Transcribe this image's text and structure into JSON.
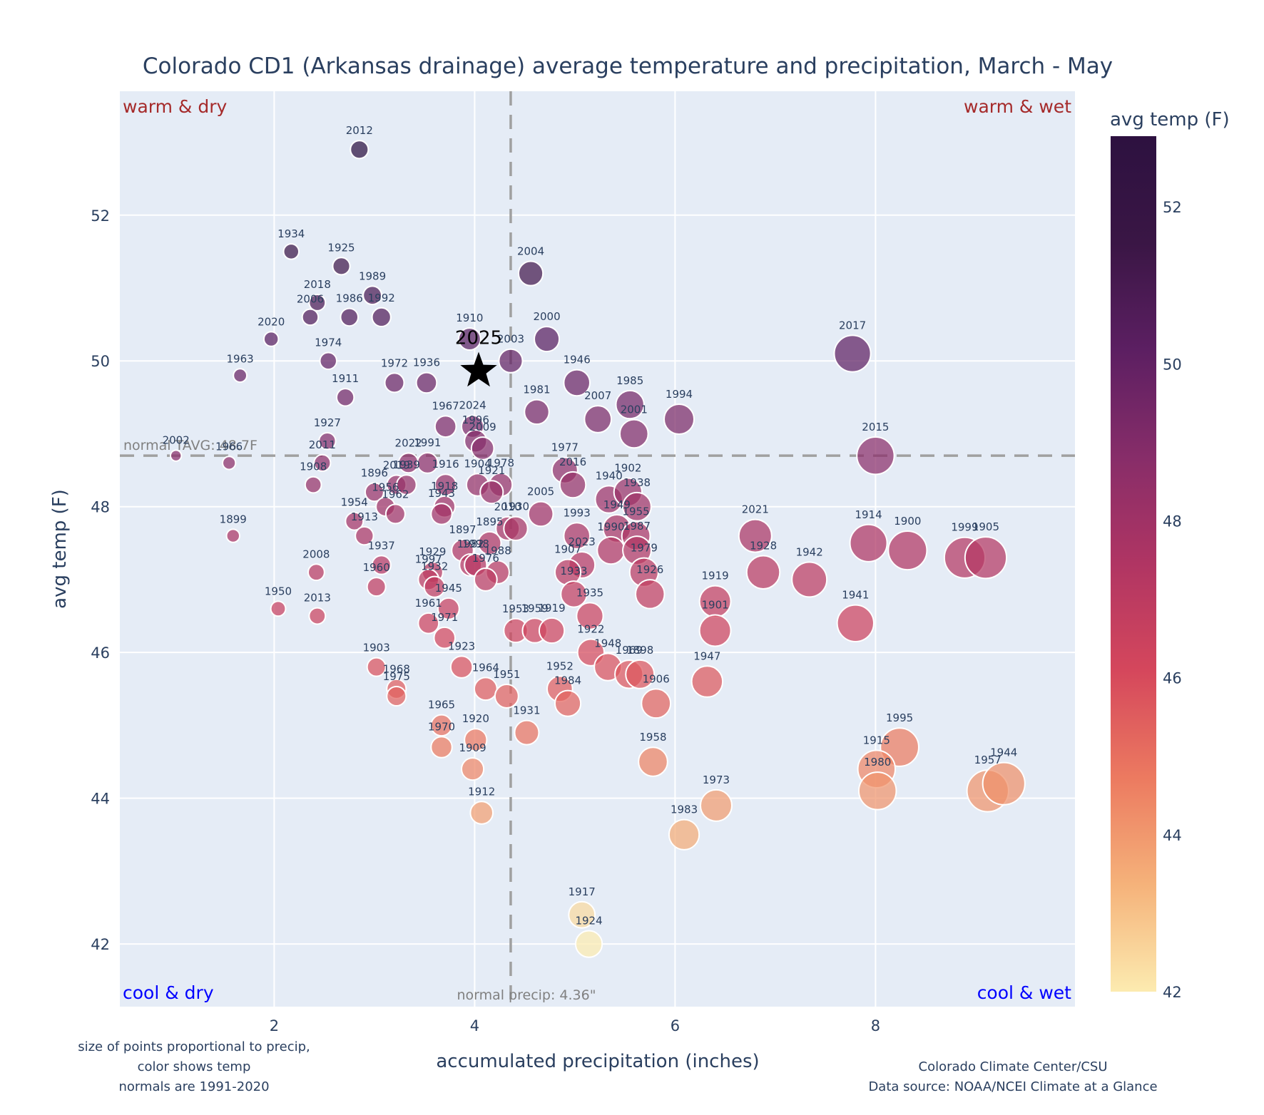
{
  "chart_data": {
    "type": "scatter",
    "title": "Colorado CD1 (Arkansas drainage) average temperature and precipitation, March - May",
    "xlabel": "accumulated precipitation (inches)",
    "ylabel": "avg temp (F)",
    "xlim": [
      0.46,
      9.99
    ],
    "ylim": [
      41.14,
      53.7
    ],
    "xticks": [
      2,
      4,
      6,
      8
    ],
    "yticks": [
      42,
      44,
      46,
      48,
      50,
      52
    ],
    "grid": true,
    "colorbar": {
      "title": "avg temp (F)",
      "range": [
        42,
        52.9
      ],
      "ticks": [
        42,
        44,
        46,
        48,
        50,
        52
      ],
      "colorscale": [
        "#fcebb0",
        "#f5b27a",
        "#ec7a60",
        "#d5475c",
        "#b03563",
        "#872d69",
        "#5c1f62",
        "#3a1645",
        "#2d1140"
      ]
    },
    "normals": {
      "temp": 48.7,
      "precip": 4.36,
      "temp_label": "normal TAVG: 48.7F",
      "precip_label": "normal precip: 4.36\""
    },
    "quadrant_labels": {
      "top_left": "warm & dry",
      "top_right": "warm & wet",
      "bottom_left": "cool & dry",
      "bottom_right": "cool & wet"
    },
    "highlight": {
      "year": "2025",
      "precip": 4.04,
      "temp": 49.9
    },
    "points": [
      {
        "year": "2012",
        "precip": 2.85,
        "temp": 52.9
      },
      {
        "year": "1934",
        "precip": 2.17,
        "temp": 51.5
      },
      {
        "year": "1925",
        "precip": 2.67,
        "temp": 51.3
      },
      {
        "year": "1989",
        "precip": 2.98,
        "temp": 50.9
      },
      {
        "year": "2018",
        "precip": 2.43,
        "temp": 50.8
      },
      {
        "year": "2006",
        "precip": 2.36,
        "temp": 50.6
      },
      {
        "year": "1986",
        "precip": 2.75,
        "temp": 50.6
      },
      {
        "year": "1992",
        "precip": 3.07,
        "temp": 50.6
      },
      {
        "year": "2020",
        "precip": 1.97,
        "temp": 50.3
      },
      {
        "year": "1974",
        "precip": 2.54,
        "temp": 50.0
      },
      {
        "year": "1963",
        "precip": 1.66,
        "temp": 49.8
      },
      {
        "year": "1911",
        "precip": 2.71,
        "temp": 49.5
      },
      {
        "year": "1972",
        "precip": 3.2,
        "temp": 49.7
      },
      {
        "year": "1936",
        "precip": 3.52,
        "temp": 49.7
      },
      {
        "year": "1927",
        "precip": 2.53,
        "temp": 48.9
      },
      {
        "year": "2011",
        "precip": 2.48,
        "temp": 48.6
      },
      {
        "year": "2002",
        "precip": 1.02,
        "temp": 48.7
      },
      {
        "year": "1966",
        "precip": 1.55,
        "temp": 48.6
      },
      {
        "year": "1908",
        "precip": 2.39,
        "temp": 48.3
      },
      {
        "year": "1899",
        "precip": 1.59,
        "temp": 47.6
      },
      {
        "year": "1910",
        "precip": 3.95,
        "temp": 50.3
      },
      {
        "year": "2003",
        "precip": 4.36,
        "temp": 50.0
      },
      {
        "year": "2004",
        "precip": 4.56,
        "temp": 51.2
      },
      {
        "year": "2000",
        "precip": 4.72,
        "temp": 50.3
      },
      {
        "year": "1946",
        "precip": 5.02,
        "temp": 49.7
      },
      {
        "year": "1981",
        "precip": 4.62,
        "temp": 49.3
      },
      {
        "year": "2007",
        "precip": 5.23,
        "temp": 49.2
      },
      {
        "year": "1985",
        "precip": 5.55,
        "temp": 49.4
      },
      {
        "year": "2001",
        "precip": 5.59,
        "temp": 49.0
      },
      {
        "year": "1994",
        "precip": 6.04,
        "temp": 49.2
      },
      {
        "year": "2017",
        "precip": 7.77,
        "temp": 50.1
      },
      {
        "year": "2015",
        "precip": 8.0,
        "temp": 48.7
      },
      {
        "year": "1967",
        "precip": 3.71,
        "temp": 49.1
      },
      {
        "year": "2024",
        "precip": 3.98,
        "temp": 49.1
      },
      {
        "year": "1996",
        "precip": 4.01,
        "temp": 48.9
      },
      {
        "year": "2009",
        "precip": 4.08,
        "temp": 48.8
      },
      {
        "year": "2022",
        "precip": 3.34,
        "temp": 48.6
      },
      {
        "year": "1991",
        "precip": 3.53,
        "temp": 48.6
      },
      {
        "year": "2019",
        "precip": 3.22,
        "temp": 48.3
      },
      {
        "year": "1939",
        "precip": 3.32,
        "temp": 48.3
      },
      {
        "year": "1916",
        "precip": 3.71,
        "temp": 48.3
      },
      {
        "year": "1904",
        "precip": 4.03,
        "temp": 48.3
      },
      {
        "year": "1978",
        "precip": 4.26,
        "temp": 48.3
      },
      {
        "year": "1921",
        "precip": 4.17,
        "temp": 48.2
      },
      {
        "year": "1896",
        "precip": 3.0,
        "temp": 48.2
      },
      {
        "year": "1956",
        "precip": 3.11,
        "temp": 48.0
      },
      {
        "year": "1918",
        "precip": 3.7,
        "temp": 48.0
      },
      {
        "year": "1954",
        "precip": 2.8,
        "temp": 47.8
      },
      {
        "year": "1913",
        "precip": 2.9,
        "temp": 47.6
      },
      {
        "year": "1962",
        "precip": 3.21,
        "temp": 47.9
      },
      {
        "year": "1943",
        "precip": 3.67,
        "temp": 47.9
      },
      {
        "year": "2010",
        "precip": 4.33,
        "temp": 47.7
      },
      {
        "year": "1930",
        "precip": 4.41,
        "temp": 47.7
      },
      {
        "year": "2005",
        "precip": 4.66,
        "temp": 47.9
      },
      {
        "year": "1977",
        "precip": 4.9,
        "temp": 48.5
      },
      {
        "year": "2016",
        "precip": 4.98,
        "temp": 48.3
      },
      {
        "year": "1940",
        "precip": 5.34,
        "temp": 48.1
      },
      {
        "year": "1902",
        "precip": 5.53,
        "temp": 48.2
      },
      {
        "year": "1938",
        "precip": 5.62,
        "temp": 48.0
      },
      {
        "year": "1993",
        "precip": 5.02,
        "temp": 47.6
      },
      {
        "year": "1949",
        "precip": 5.42,
        "temp": 47.7
      },
      {
        "year": "1990",
        "precip": 5.36,
        "temp": 47.4
      },
      {
        "year": "1955",
        "precip": 5.61,
        "temp": 47.6
      },
      {
        "year": "1987",
        "precip": 5.62,
        "temp": 47.4
      },
      {
        "year": "2023",
        "precip": 5.07,
        "temp": 47.2
      },
      {
        "year": "1907",
        "precip": 4.93,
        "temp": 47.1
      },
      {
        "year": "1979",
        "precip": 5.69,
        "temp": 47.1
      },
      {
        "year": "1933",
        "precip": 4.99,
        "temp": 46.8
      },
      {
        "year": "1935",
        "precip": 5.15,
        "temp": 46.5
      },
      {
        "year": "1926",
        "precip": 5.75,
        "temp": 46.8
      },
      {
        "year": "1937",
        "precip": 3.07,
        "temp": 47.2
      },
      {
        "year": "1897",
        "precip": 3.88,
        "temp": 47.4
      },
      {
        "year": "1895",
        "precip": 4.15,
        "temp": 47.5
      },
      {
        "year": "1982",
        "precip": 3.96,
        "temp": 47.2
      },
      {
        "year": "1998",
        "precip": 4.01,
        "temp": 47.2
      },
      {
        "year": "1988",
        "precip": 4.23,
        "temp": 47.1
      },
      {
        "year": "1976",
        "precip": 4.11,
        "temp": 47.0
      },
      {
        "year": "1929",
        "precip": 3.58,
        "temp": 47.1
      },
      {
        "year": "1997",
        "precip": 3.54,
        "temp": 47.0
      },
      {
        "year": "1932",
        "precip": 3.6,
        "temp": 46.9
      },
      {
        "year": "1960",
        "precip": 3.02,
        "temp": 46.9
      },
      {
        "year": "1945",
        "precip": 3.74,
        "temp": 46.6
      },
      {
        "year": "1961",
        "precip": 3.54,
        "temp": 46.4
      },
      {
        "year": "1971",
        "precip": 3.7,
        "temp": 46.2
      },
      {
        "year": "2008",
        "precip": 2.42,
        "temp": 47.1
      },
      {
        "year": "1950",
        "precip": 2.04,
        "temp": 46.6
      },
      {
        "year": "2013",
        "precip": 2.43,
        "temp": 46.5
      },
      {
        "year": "1903",
        "precip": 3.02,
        "temp": 45.8
      },
      {
        "year": "1968",
        "precip": 3.22,
        "temp": 45.5
      },
      {
        "year": "1975",
        "precip": 3.22,
        "temp": 45.4
      },
      {
        "year": "1923",
        "precip": 3.87,
        "temp": 45.8
      },
      {
        "year": "1964",
        "precip": 4.11,
        "temp": 45.5
      },
      {
        "year": "1951",
        "precip": 4.32,
        "temp": 45.4
      },
      {
        "year": "1965",
        "precip": 3.67,
        "temp": 45.0
      },
      {
        "year": "1970",
        "precip": 3.67,
        "temp": 44.7
      },
      {
        "year": "1920",
        "precip": 4.01,
        "temp": 44.8
      },
      {
        "year": "1909",
        "precip": 3.98,
        "temp": 44.4
      },
      {
        "year": "1912",
        "precip": 4.07,
        "temp": 43.8
      },
      {
        "year": "1931",
        "precip": 4.52,
        "temp": 44.9
      },
      {
        "year": "1953",
        "precip": 4.41,
        "temp": 46.3
      },
      {
        "year": "1959",
        "precip": 4.6,
        "temp": 46.3
      },
      {
        "year": "1919",
        "precip": 4.77,
        "temp": 46.3
      },
      {
        "year": "1922",
        "precip": 5.16,
        "temp": 46.0
      },
      {
        "year": "1948",
        "precip": 5.33,
        "temp": 45.8
      },
      {
        "year": "1969",
        "precip": 5.54,
        "temp": 45.7
      },
      {
        "year": "1898",
        "precip": 5.65,
        "temp": 45.7
      },
      {
        "year": "1952",
        "precip": 4.85,
        "temp": 45.5
      },
      {
        "year": "1984",
        "precip": 4.93,
        "temp": 45.3
      },
      {
        "year": "1906",
        "precip": 5.81,
        "temp": 45.3
      },
      {
        "year": "1958",
        "precip": 5.78,
        "temp": 44.5
      },
      {
        "year": "1947",
        "precip": 6.32,
        "temp": 45.6
      },
      {
        "year": "1939b",
        "label": "1919",
        "precip": 6.4,
        "temp": 46.7
      },
      {
        "year": "1901",
        "precip": 6.4,
        "temp": 46.3
      },
      {
        "year": "2021",
        "precip": 6.8,
        "temp": 47.6
      },
      {
        "year": "1928",
        "precip": 6.88,
        "temp": 47.1
      },
      {
        "year": "1942",
        "precip": 7.34,
        "temp": 47.0
      },
      {
        "year": "1914",
        "precip": 7.93,
        "temp": 47.5
      },
      {
        "year": "1900",
        "precip": 8.32,
        "temp": 47.4
      },
      {
        "year": "1999",
        "precip": 8.89,
        "temp": 47.3
      },
      {
        "year": "1905",
        "precip": 9.1,
        "temp": 47.3
      },
      {
        "year": "1941",
        "precip": 7.8,
        "temp": 46.4
      },
      {
        "year": "1973",
        "precip": 6.41,
        "temp": 43.9
      },
      {
        "year": "1983",
        "precip": 6.09,
        "temp": 43.5
      },
      {
        "year": "1995",
        "precip": 8.24,
        "temp": 44.7
      },
      {
        "year": "1915",
        "precip": 8.01,
        "temp": 44.4
      },
      {
        "year": "1980",
        "precip": 8.02,
        "temp": 44.1
      },
      {
        "year": "1957",
        "precip": 9.12,
        "temp": 44.1
      },
      {
        "year": "1944",
        "precip": 9.28,
        "temp": 44.2
      },
      {
        "year": "1917",
        "precip": 5.07,
        "temp": 42.4
      },
      {
        "year": "1924",
        "precip": 5.14,
        "temp": 42.0
      }
    ]
  },
  "notes": {
    "left_lines": [
      "size of points proportional to precip,",
      "color shows temp",
      "normals are 1991-2020"
    ],
    "right_lines": [
      "Colorado Climate Center/CSU",
      "Data source: NOAA/NCEI Climate at a Glance"
    ]
  }
}
